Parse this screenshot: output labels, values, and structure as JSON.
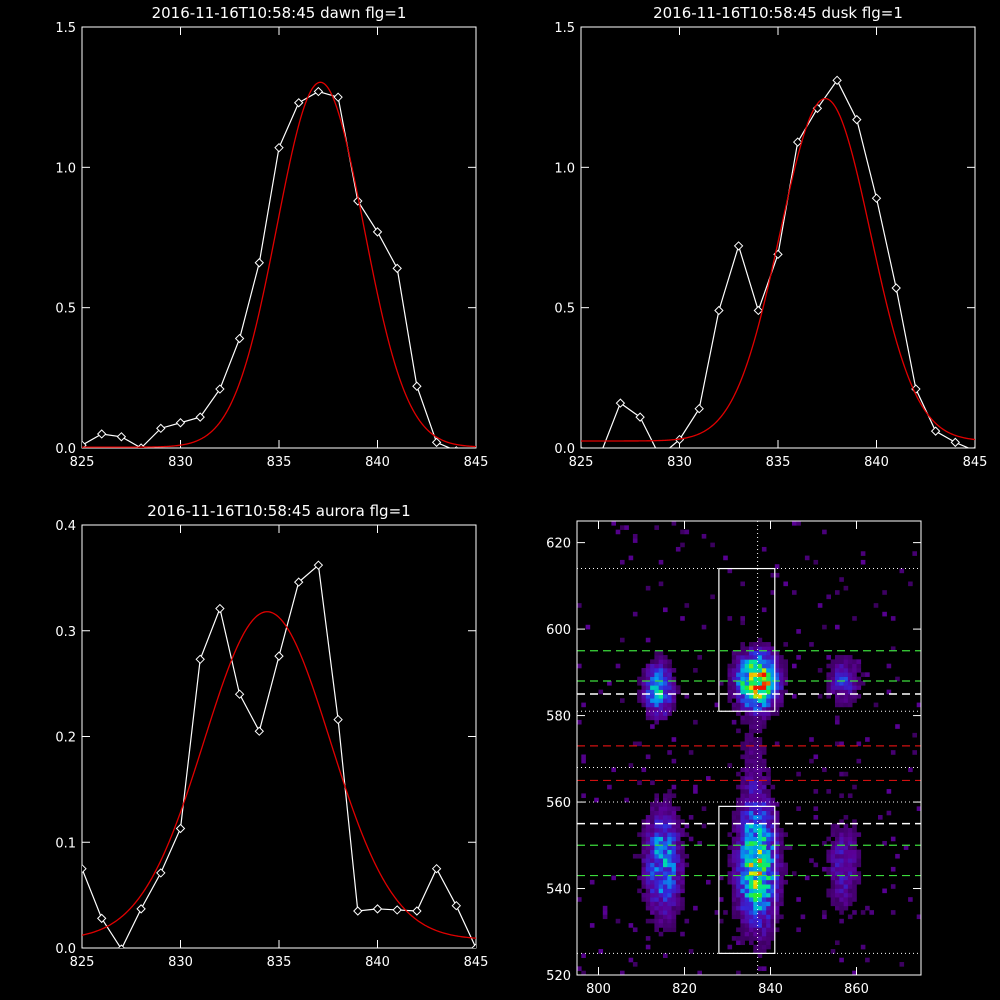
{
  "chart_data": [
    {
      "type": "line",
      "title": "2016-11-16T10:58:45 dawn flg=1",
      "xlim": [
        825,
        845
      ],
      "ylim": [
        0,
        1.5
      ],
      "xticks": [
        825,
        830,
        835,
        840,
        845
      ],
      "yticks": [
        0.0,
        0.5,
        1.0,
        1.5
      ],
      "ytick_labels": [
        "0.0",
        "0.5",
        "1.0",
        "1.5"
      ],
      "series": [
        {
          "style": "data",
          "color": "#ffffff",
          "x": [
            825,
            826,
            827,
            828,
            829,
            830,
            831,
            832,
            833,
            834,
            835,
            836,
            837,
            838,
            839,
            840,
            841,
            842,
            843,
            844
          ],
          "y": [
            0.01,
            0.05,
            0.04,
            0.0,
            0.07,
            0.09,
            0.11,
            0.21,
            0.39,
            0.66,
            1.07,
            1.23,
            1.27,
            1.25,
            0.88,
            0.77,
            0.64,
            0.22,
            0.02,
            -0.01
          ]
        },
        {
          "style": "fit",
          "color": "#e00000",
          "gaussian": {
            "amp": 1.3,
            "center": 837.1,
            "sigma": 2.2,
            "offset": 0.003
          }
        }
      ]
    },
    {
      "type": "line",
      "title": "2016-11-16T10:58:45 dusk flg=1",
      "xlim": [
        825,
        845
      ],
      "ylim": [
        0,
        1.5
      ],
      "xticks": [
        825,
        830,
        835,
        840,
        845
      ],
      "yticks": [
        0.0,
        0.5,
        1.0,
        1.5
      ],
      "ytick_labels": [
        "0.0",
        "0.5",
        "1.0",
        "1.5"
      ],
      "series": [
        {
          "style": "data",
          "color": "#ffffff",
          "x": [
            825,
            826,
            827,
            828,
            829,
            830,
            831,
            832,
            833,
            834,
            835,
            836,
            837,
            838,
            839,
            840,
            841,
            842,
            843,
            844,
            845
          ],
          "y": [
            -0.01,
            -0.02,
            0.16,
            0.11,
            -0.03,
            0.03,
            0.14,
            0.49,
            0.72,
            0.49,
            0.69,
            1.09,
            1.21,
            1.31,
            1.17,
            0.89,
            0.57,
            0.21,
            0.06,
            0.02,
            -0.01
          ]
        },
        {
          "style": "fit",
          "color": "#e00000",
          "gaussian": {
            "amp": 1.22,
            "center": 837.4,
            "sigma": 2.3,
            "offset": 0.025
          }
        }
      ]
    },
    {
      "type": "line",
      "title": "2016-11-16T10:58:45 aurora flg=1",
      "xlim": [
        825,
        845
      ],
      "ylim": [
        0,
        0.4
      ],
      "xticks": [
        825,
        830,
        835,
        840,
        845
      ],
      "yticks": [
        0.0,
        0.1,
        0.2,
        0.3,
        0.4
      ],
      "ytick_labels": [
        "0.0",
        "0.1",
        "0.2",
        "0.3",
        "0.4"
      ],
      "series": [
        {
          "style": "data",
          "color": "#ffffff",
          "x": [
            825,
            826,
            827,
            828,
            829,
            830,
            831,
            832,
            833,
            834,
            835,
            836,
            837,
            838,
            839,
            840,
            841,
            842,
            843,
            844,
            845
          ],
          "y": [
            0.075,
            0.028,
            -0.001,
            0.037,
            0.071,
            0.113,
            0.273,
            0.321,
            0.24,
            0.205,
            0.276,
            0.346,
            0.362,
            0.216,
            0.035,
            0.037,
            0.036,
            0.035,
            0.075,
            0.04,
            0.0
          ]
        },
        {
          "style": "fit",
          "color": "#e00000",
          "gaussian": {
            "amp": 0.31,
            "center": 834.4,
            "sigma": 3.2,
            "offset": 0.008
          }
        }
      ]
    },
    {
      "type": "heatmap",
      "xlim": [
        795,
        875
      ],
      "ylim": [
        520,
        625
      ],
      "xticks": [
        800,
        820,
        840,
        860
      ],
      "yticks": [
        520,
        540,
        560,
        580,
        600,
        620
      ],
      "blobs": [
        {
          "x": 814,
          "y": 586,
          "sx": 2.2,
          "sy": 4,
          "amp": 0.5
        },
        {
          "x": 837,
          "y": 588,
          "sx": 3,
          "sy": 4,
          "amp": 0.95
        },
        {
          "x": 857,
          "y": 588,
          "sx": 2.5,
          "sy": 3.5,
          "amp": 0.25
        },
        {
          "x": 815,
          "y": 546,
          "sx": 2.8,
          "sy": 8,
          "amp": 0.45
        },
        {
          "x": 837,
          "y": 545,
          "sx": 3,
          "sy": 9,
          "amp": 0.7
        },
        {
          "x": 857,
          "y": 545,
          "sx": 2.5,
          "sy": 7,
          "amp": 0.22
        },
        {
          "x": 836,
          "y": 567,
          "sx": 2.5,
          "sy": 9,
          "amp": 0.1
        }
      ],
      "vertical_dotted_x": 837,
      "horizontal_dotted_y": [
        614,
        581,
        568,
        560,
        525
      ],
      "green_dashed_y": [
        595,
        588,
        550,
        543
      ],
      "white_dashed_y": [
        585,
        555
      ],
      "red_dashed_y": [
        573,
        565
      ],
      "boxes": [
        {
          "x0": 828,
          "x1": 841,
          "y0": 581,
          "y1": 614
        },
        {
          "x0": 828,
          "x1": 841,
          "y0": 525,
          "y1": 559
        }
      ]
    }
  ]
}
